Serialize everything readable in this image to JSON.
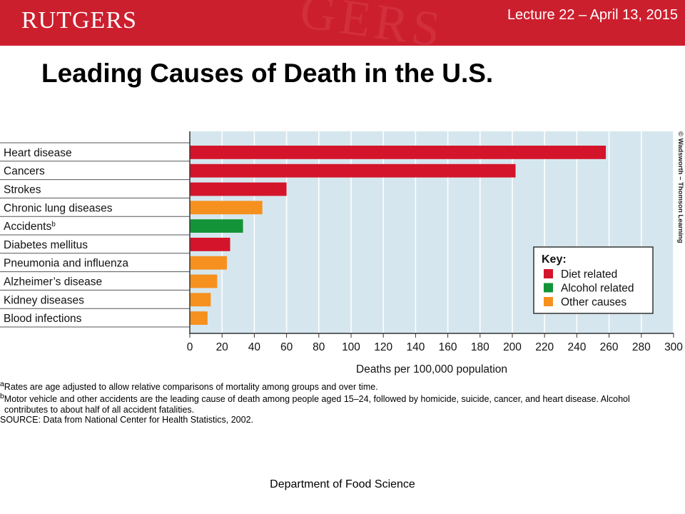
{
  "header": {
    "logo_text": "RUTGERS",
    "lecture": "Lecture 22 – April 13, 2015",
    "colors": {
      "band": "#cc1f2e"
    }
  },
  "slide_title": "Leading Causes of Death in the U.S.",
  "chart_data": {
    "type": "bar",
    "orientation": "horizontal",
    "categories": [
      "Heart disease",
      "Cancers",
      "Strokes",
      "Chronic lung diseases",
      "Accidents",
      "Diabetes mellitus",
      "Pneumonia and influenza",
      "Alzheimer’s disease",
      "Kidney diseases",
      "Blood infections"
    ],
    "category_superscripts": [
      "",
      "",
      "",
      "",
      "b",
      "",
      "",
      "",
      "",
      ""
    ],
    "values": [
      258,
      202,
      60,
      45,
      33,
      25,
      23,
      17,
      13,
      11
    ],
    "bar_groups": [
      "Diet related",
      "Diet related",
      "Diet related",
      "Other causes",
      "Alcohol related",
      "Diet related",
      "Other causes",
      "Other causes",
      "Other causes",
      "Other causes"
    ],
    "xlabel": "Deaths per 100,000 population",
    "xlim": [
      0,
      300
    ],
    "xticks": [
      0,
      20,
      40,
      60,
      80,
      100,
      120,
      140,
      160,
      180,
      200,
      220,
      240,
      260,
      280,
      300
    ],
    "grid": true,
    "legend": {
      "title": "Key:",
      "placement": "right",
      "entries": [
        {
          "label": "Diet related",
          "color": "#d4142a"
        },
        {
          "label": "Alcohol related",
          "color": "#139438"
        },
        {
          "label": "Other causes",
          "color": "#f6901e"
        }
      ]
    },
    "credit": "© Wadsworth – Thomson Learning",
    "colors": {
      "plot_background": "#d6e6ee",
      "grid": "#ffffff"
    }
  },
  "footnotes": {
    "a": "Rates are age adjusted to allow relative comparisons of mortality among groups and over time.",
    "b": "Motor vehicle and other accidents are the leading cause of death among people aged 15–24, followed by homicide, suicide, cancer, and heart disease. Alcohol",
    "b_cont": "contributes to about half of all accident fatalities.",
    "source": "SOURCE: Data from National Center for Health Statistics, 2002."
  },
  "footer": "Department of Food Science"
}
